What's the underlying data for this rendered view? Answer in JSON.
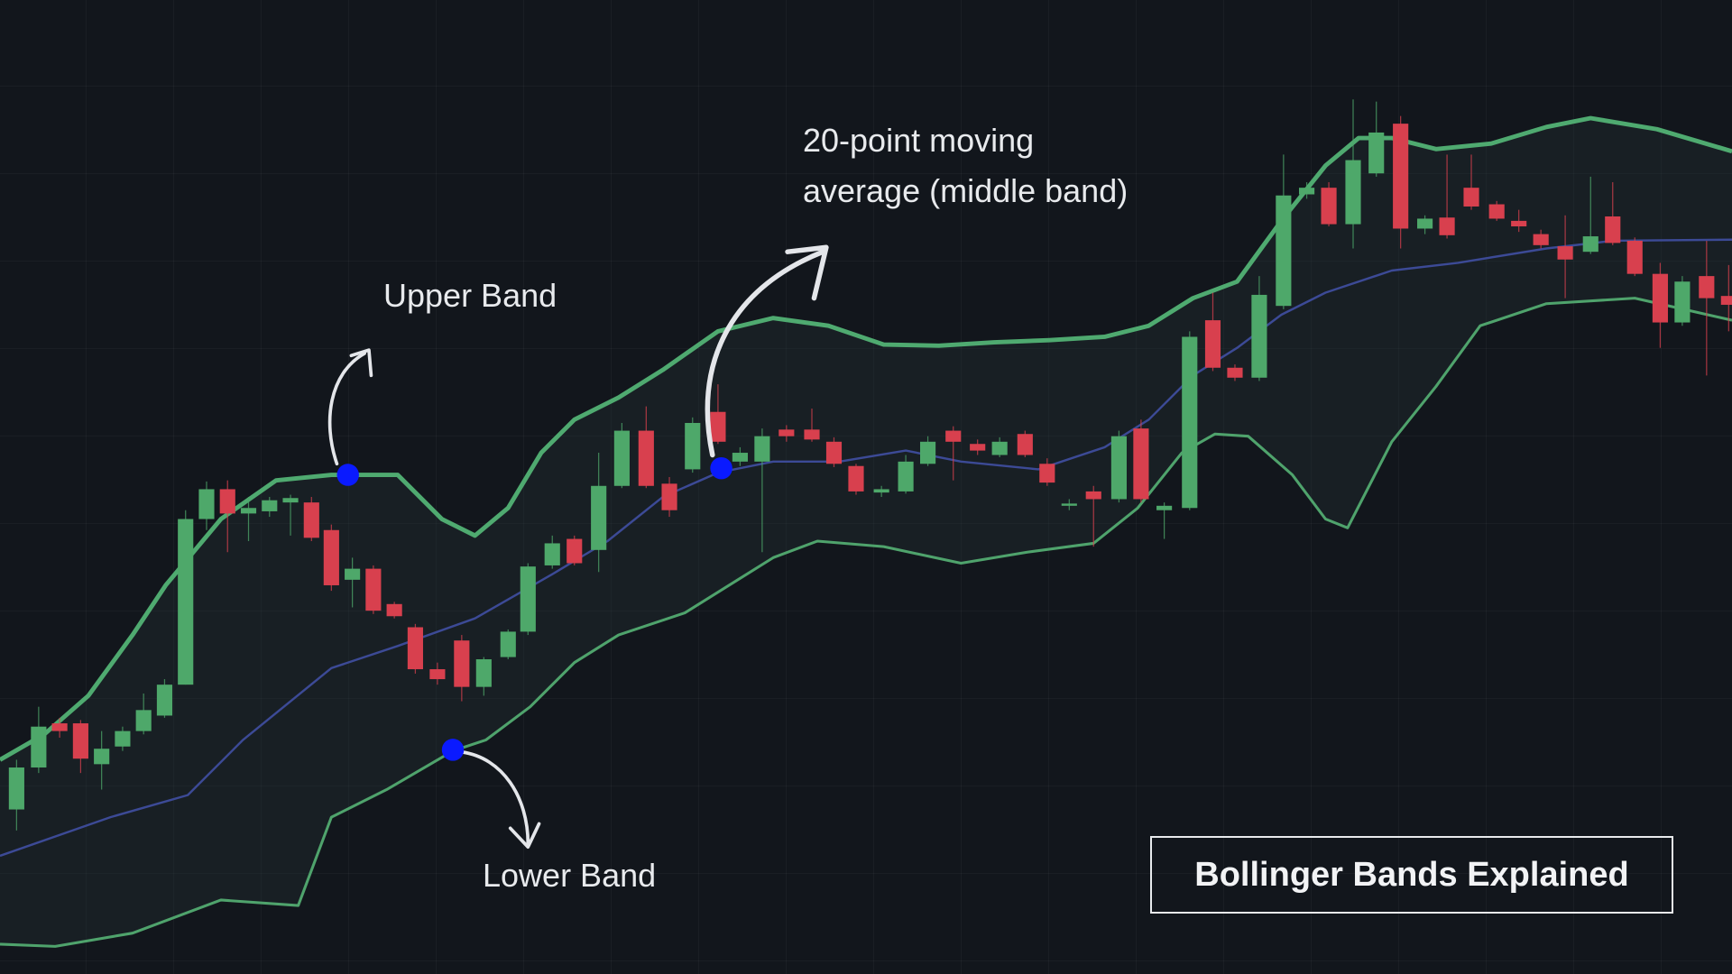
{
  "chart_data": {
    "type": "candlestick",
    "title": "Bollinger Bands Explained",
    "xlim": [
      0,
      1568
    ],
    "ylim": [
      0,
      882
    ],
    "grid": true,
    "up_color": "#4ea86a",
    "down_color": "#d8404e",
    "candles": {
      "x": [
        15,
        35,
        54,
        73,
        92,
        111,
        130,
        149,
        168,
        187,
        206,
        225,
        244,
        263,
        282,
        300,
        319,
        338,
        357,
        376,
        396,
        418,
        438,
        460,
        478,
        500,
        520,
        542,
        563,
        585,
        606,
        627,
        650,
        670,
        690,
        712,
        735,
        755,
        775,
        798,
        820,
        840,
        863,
        885,
        905,
        928,
        948,
        968,
        990,
        1013,
        1033,
        1054,
        1077,
        1098,
        1118,
        1140,
        1162,
        1183,
        1203,
        1225,
        1246,
        1268,
        1290,
        1310,
        1332,
        1355,
        1375,
        1395,
        1417,
        1440,
        1460,
        1480,
        1503,
        1523,
        1545,
        1565
      ],
      "open": [
        149,
        187,
        227,
        227,
        190,
        206,
        220,
        234,
        262,
        412,
        439,
        417,
        419,
        427,
        427,
        402,
        357,
        367,
        335,
        314,
        276,
        302,
        260,
        287,
        310,
        370,
        394,
        384,
        442,
        492,
        444,
        457,
        509,
        464,
        464,
        493,
        493,
        482,
        460,
        436,
        437,
        462,
        492,
        480,
        470,
        489,
        462,
        424,
        437,
        430,
        494,
        420,
        422,
        592,
        549,
        540,
        605,
        706,
        712,
        679,
        725,
        770,
        675,
        685,
        712,
        697,
        682,
        670,
        659,
        654,
        686,
        664,
        634,
        590,
        632,
        614
      ],
      "high": [
        194,
        242,
        232,
        230,
        220,
        224,
        254,
        267,
        420,
        446,
        447,
        432,
        432,
        434,
        432,
        407,
        377,
        370,
        337,
        317,
        282,
        307,
        287,
        312,
        372,
        397,
        397,
        472,
        499,
        514,
        450,
        504,
        534,
        477,
        494,
        497,
        512,
        486,
        462,
        442,
        470,
        487,
        496,
        484,
        486,
        492,
        467,
        430,
        442,
        492,
        502,
        427,
        582,
        617,
        552,
        632,
        742,
        717,
        717,
        792,
        790,
        777,
        687,
        742,
        742,
        700,
        692,
        674,
        687,
        722,
        717,
        667,
        644,
        632,
        664,
        642
      ],
      "low": [
        130,
        182,
        214,
        182,
        167,
        202,
        217,
        232,
        262,
        402,
        382,
        392,
        414,
        397,
        392,
        347,
        332,
        326,
        322,
        272,
        262,
        247,
        252,
        285,
        307,
        367,
        370,
        364,
        440,
        440,
        414,
        454,
        480,
        460,
        382,
        482,
        482,
        459,
        434,
        432,
        435,
        460,
        447,
        470,
        468,
        468,
        442,
        420,
        387,
        427,
        427,
        394,
        420,
        546,
        537,
        537,
        602,
        702,
        677,
        657,
        722,
        657,
        670,
        666,
        692,
        682,
        672,
        657,
        612,
        652,
        660,
        632,
        567,
        587,
        542,
        582
      ],
      "close": [
        187,
        224,
        220,
        195,
        204,
        220,
        239,
        262,
        412,
        439,
        417,
        422,
        429,
        431,
        395,
        352,
        367,
        329,
        324,
        276,
        267,
        260,
        285,
        310,
        369,
        390,
        372,
        442,
        492,
        442,
        420,
        499,
        482,
        472,
        487,
        487,
        484,
        462,
        437,
        439,
        464,
        482,
        482,
        474,
        482,
        470,
        445,
        426,
        430,
        487,
        430,
        424,
        577,
        549,
        540,
        615,
        705,
        712,
        679,
        737,
        762,
        675,
        684,
        669,
        695,
        684,
        677,
        660,
        647,
        668,
        662,
        634,
        590,
        627,
        612,
        606
      ]
    },
    "series": [
      {
        "name": "Upper Band",
        "color": "#4faa70",
        "x": [
          0,
          40,
          80,
          120,
          150,
          200,
          250,
          300,
          360,
          400,
          430,
          460,
          490,
          520,
          560,
          600,
          650,
          700,
          750,
          800,
          850,
          900,
          950,
          1000,
          1040,
          1080,
          1120,
          1160,
          1200,
          1230,
          1260,
          1300,
          1350,
          1400,
          1440,
          1500,
          1568
        ],
        "values": [
          194,
          217,
          252,
          307,
          352,
          412,
          447,
          452,
          452,
          412,
          397,
          422,
          472,
          502,
          522,
          547,
          582,
          594,
          587,
          570,
          569,
          572,
          574,
          577,
          587,
          612,
          627,
          682,
          732,
          757,
          757,
          747,
          752,
          767,
          775,
          765,
          745
        ]
      },
      {
        "name": "20-point moving average (middle band)",
        "color": "#3c4a96",
        "x": [
          0,
          100,
          170,
          220,
          300,
          360,
          430,
          500,
          550,
          600,
          650,
          700,
          760,
          820,
          870,
          940,
          1000,
          1040,
          1080,
          1120,
          1160,
          1200,
          1260,
          1320,
          1400,
          1460,
          1568
        ],
        "values": [
          107,
          142,
          162,
          212,
          277,
          297,
          322,
          362,
          392,
          432,
          454,
          464,
          464,
          474,
          464,
          457,
          477,
          502,
          542,
          567,
          597,
          617,
          637,
          644,
          657,
          664,
          665
        ]
      },
      {
        "name": "Lower Band",
        "color": "#4fa36c",
        "x": [
          0,
          50,
          120,
          200,
          270,
          300,
          350,
          410,
          440,
          480,
          520,
          560,
          620,
          700,
          740,
          800,
          870,
          930,
          990,
          1030,
          1070,
          1100,
          1130,
          1170,
          1200,
          1220,
          1260,
          1300,
          1340,
          1400,
          1480,
          1568
        ],
        "values": [
          27,
          25,
          37,
          67,
          62,
          142,
          167,
          202,
          212,
          242,
          282,
          307,
          327,
          377,
          392,
          387,
          372,
          382,
          390,
          422,
          472,
          489,
          487,
          452,
          412,
          404,
          482,
          532,
          587,
          607,
          612,
          592
        ]
      }
    ]
  }
}
